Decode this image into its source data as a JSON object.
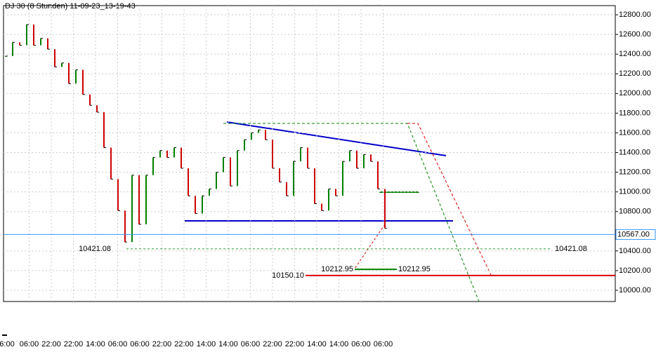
{
  "chart_data": {
    "type": "line",
    "title": "DJ 30 (8 Stunden) 11-09-23_13-19-43",
    "x_labels": [
      "6:00",
      "06:00",
      "22:00",
      "22:00",
      "14:00",
      "06:00",
      "06:00",
      "22:00",
      "22:00",
      "14:00",
      "14:00",
      "06:00",
      "22:00",
      "22:00",
      "14:00",
      "14:00",
      "06:00",
      "06:00"
    ],
    "series": [
      {
        "name": "DJ 30",
        "up_color": "#008000",
        "down_color": "#cc0000",
        "values": [
          12380,
          12520,
          12490,
          12700,
          12490,
          12560,
          12450,
          12270,
          12310,
          12100,
          12240,
          11990,
          11880,
          11810,
          11450,
          11130,
          10810,
          10490,
          11170,
          10670,
          11170,
          11350,
          11420,
          11350,
          11450,
          11240,
          10960,
          10780,
          10960,
          11030,
          11200,
          11350,
          11060,
          11420,
          11530,
          11600,
          11630,
          11530,
          11240,
          11100,
          10960,
          11310,
          11450,
          11240,
          10880,
          10810,
          11030,
          10960,
          11310,
          11420,
          11240,
          11380,
          11310,
          11030,
          10630
        ]
      }
    ],
    "ylim": [
      9886,
      12893
    ],
    "yticks": [
      {
        "value": 12800,
        "label": "12800.00"
      },
      {
        "value": 12600,
        "label": "12600.00"
      },
      {
        "value": 12400,
        "label": "12400.00"
      },
      {
        "value": 12200,
        "label": "12200.00"
      },
      {
        "value": 12000,
        "label": "12000.00"
      },
      {
        "value": 11800,
        "label": "11800.00"
      },
      {
        "value": 11600,
        "label": "11600.00"
      },
      {
        "value": 11400,
        "label": "11400.00"
      },
      {
        "value": 11200,
        "label": "11200.00"
      },
      {
        "value": 11000,
        "label": "11000.00"
      },
      {
        "value": 10800,
        "label": "10800.00"
      },
      {
        "value": 10400,
        "label": "10400.00"
      },
      {
        "value": 10200,
        "label": "10200.00"
      },
      {
        "value": 10000,
        "label": "10000.00"
      }
    ],
    "levels": [
      {
        "value": 10567,
        "label": "10567.00",
        "color": "#3399ff"
      },
      {
        "value": 10421.08,
        "label": "10421.08",
        "color": "#339933"
      },
      {
        "value": 10212.95,
        "label": "10212.95",
        "color": "#008000"
      },
      {
        "value": 10150.1,
        "label": "10150.10",
        "color": "#dd0000"
      }
    ],
    "grid": true
  }
}
